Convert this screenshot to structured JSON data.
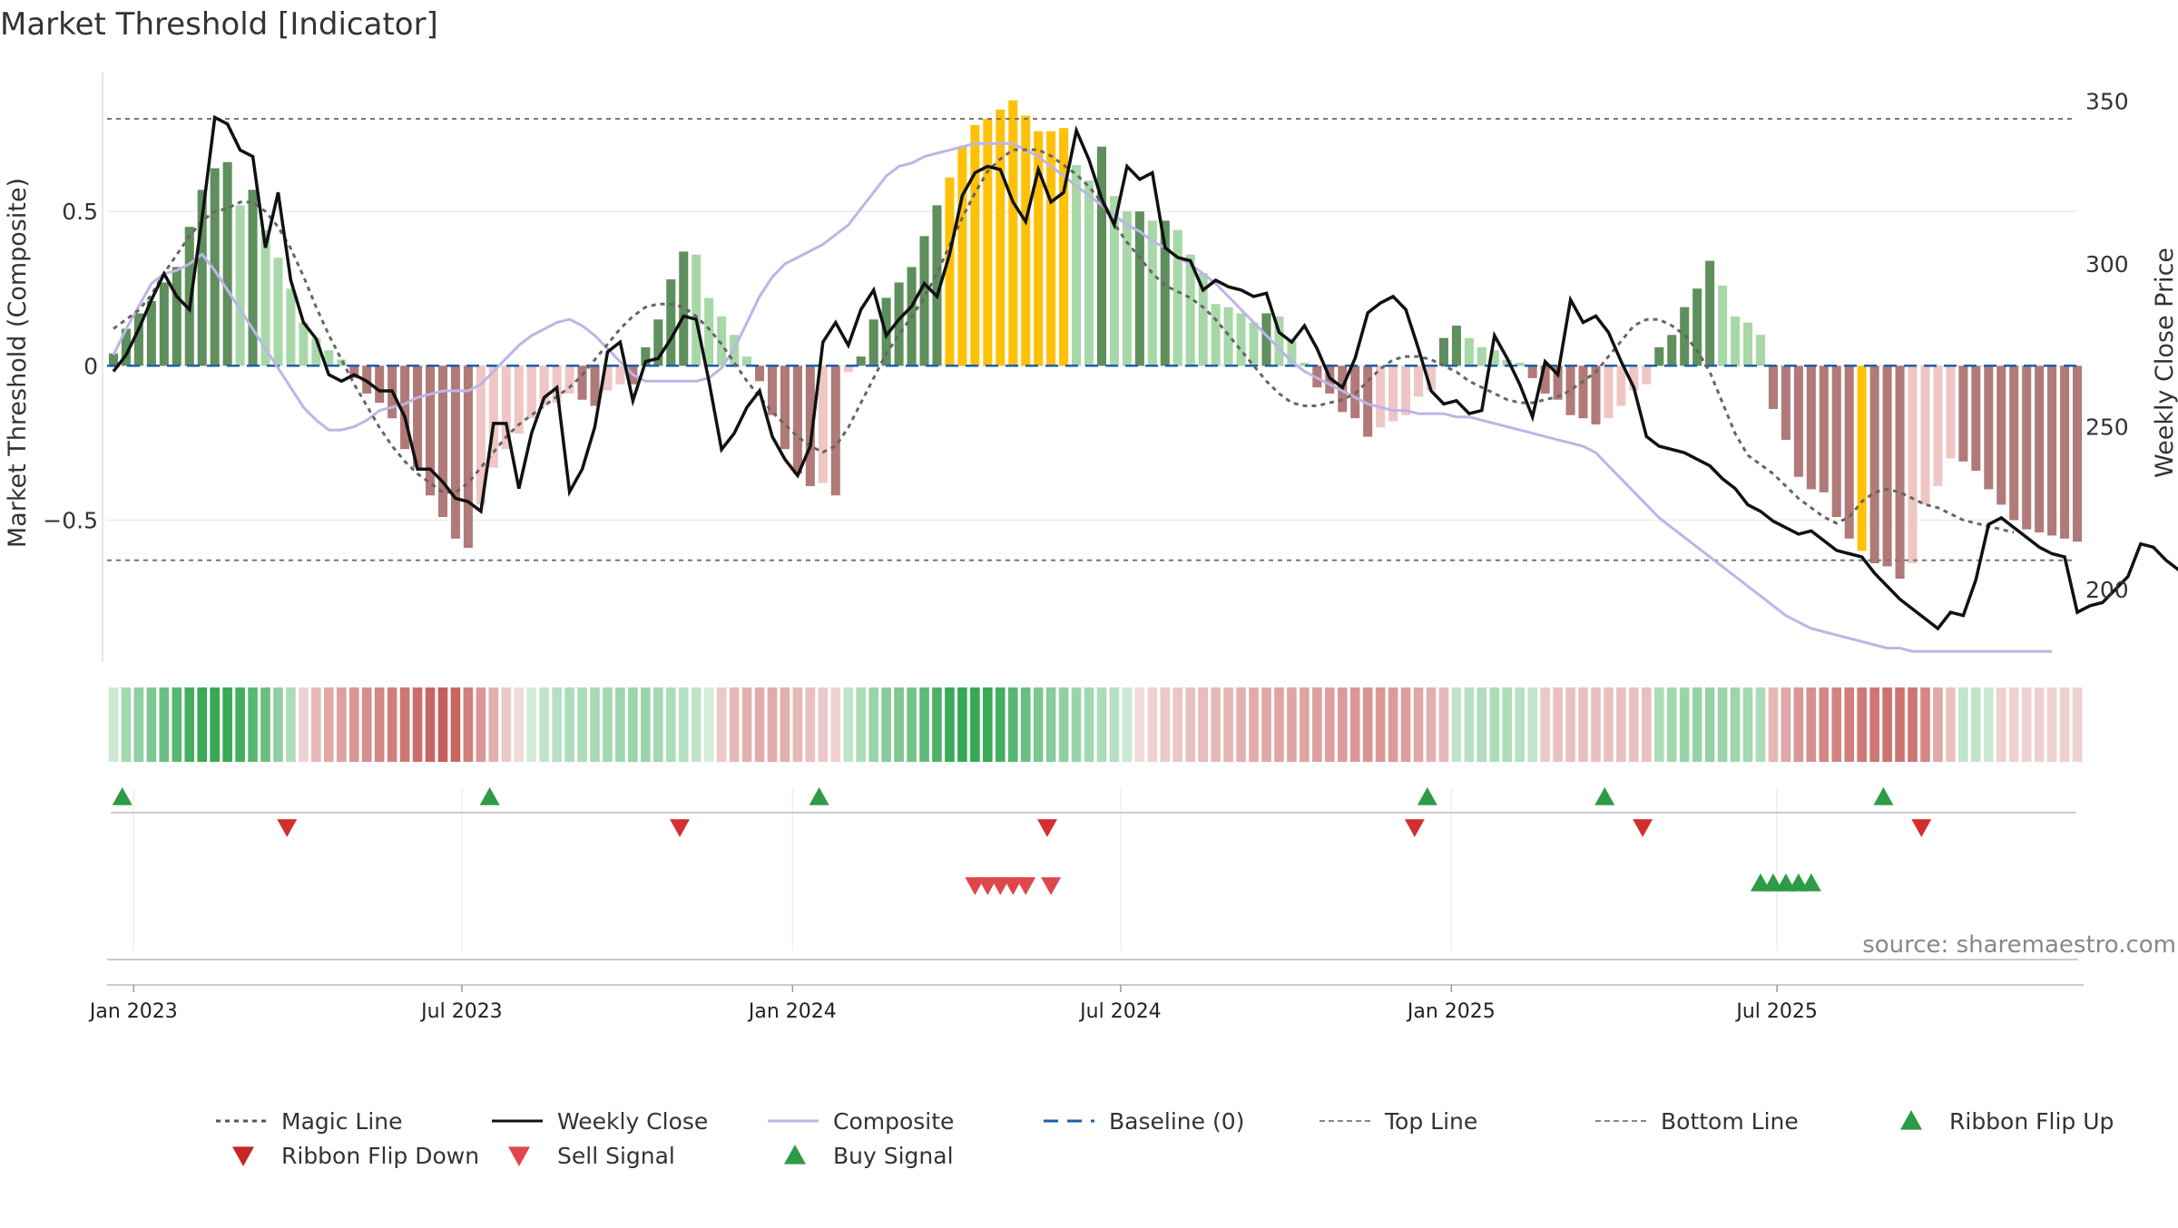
{
  "chart_data": {
    "type": "bar",
    "title": "Market Threshold [Indicator]",
    "ylabel": "Market Threshold (Composite)",
    "y2label": "Weekly Close Price",
    "source": "source: sharemaestro.com",
    "ylim": [
      -0.96,
      0.95
    ],
    "y2lim": [
      177.7,
      358.8
    ],
    "yticks": [
      {
        "v": 0.5,
        "label": "0.5"
      },
      {
        "v": 0,
        "label": "0"
      },
      {
        "v": -0.5,
        "label": "−0.5"
      }
    ],
    "y2ticks": [
      {
        "v": 350,
        "label": "350"
      },
      {
        "v": 300,
        "label": "300"
      },
      {
        "v": 250,
        "label": "250"
      },
      {
        "v": 200,
        "label": "200"
      }
    ],
    "xticks": [
      {
        "week": 2.1,
        "label": "Jan 2023"
      },
      {
        "week": 28.0,
        "label": "Jul 2023"
      },
      {
        "week": 54.1,
        "label": "Jan 2024"
      },
      {
        "week": 80.0,
        "label": "Jul 2024"
      },
      {
        "week": 106.1,
        "label": "Jan 2025"
      },
      {
        "week": 131.8,
        "label": "Jul 2025"
      }
    ],
    "top_line": 0.8,
    "bottom_line": -0.63,
    "composite": [
      0.02,
      0.08,
      0.14,
      0.2,
      0.26,
      0.32,
      0.46,
      0.57,
      0.64,
      0.66,
      0.5,
      0.56,
      0.44,
      0.34,
      0.25,
      0.14,
      0.09,
      0.05,
      0.01,
      -0.03,
      -0.08,
      -0.12,
      -0.17,
      -0.26,
      -0.33,
      -0.41,
      -0.48,
      -0.55,
      -0.58,
      -0.44,
      -0.33,
      -0.27,
      -0.22,
      -0.17,
      -0.13,
      -0.12,
      -0.09,
      -0.11,
      -0.13,
      -0.08,
      -0.06,
      -0.05,
      0.05,
      0.15,
      0.27,
      0.37,
      0.36,
      0.22,
      0.16,
      0.1,
      0.03,
      -0.05,
      -0.16,
      -0.27,
      -0.35,
      -0.39,
      -0.38,
      -0.41,
      -0.02,
      0.03,
      0.15,
      0.22,
      0.27,
      0.32,
      0.42,
      0.52,
      0.61,
      0.71,
      0.78,
      0.8,
      0.83,
      0.86,
      0.81,
      0.76,
      0.76,
      0.76,
      0.65,
      0.6,
      0.71,
      0.55,
      0.5,
      0.5,
      0.47,
      0.47,
      0.44,
      0.36,
      0.3,
      0.2,
      0.19,
      0.17,
      0.14,
      0.17,
      0.16,
      0.08,
      0.01,
      -0.07,
      -0.09,
      -0.15,
      -0.17,
      -0.23,
      -0.2,
      -0.18,
      -0.16,
      -0.1,
      -0.08,
      0.09,
      0.13,
      0.09,
      0.06,
      0.05,
      0.02,
      0.01,
      -0.04,
      -0.09,
      -0.11,
      -0.16,
      -0.17,
      -0.19,
      -0.17,
      -0.13,
      -0.08,
      -0.06,
      0.06,
      0.1,
      0.19,
      0.25,
      0.34,
      0.26,
      0.16,
      0.14,
      0.1,
      -0.14,
      -0.24,
      -0.36,
      -0.4,
      -0.41,
      -0.49,
      -0.56,
      -0.6,
      -0.63,
      -0.64,
      -0.68,
      -0.63,
      -0.45,
      -0.39,
      -0.3,
      -0.31,
      -0.34,
      -0.4,
      -0.45,
      -0.5,
      -0.53,
      -0.54,
      -0.55,
      -0.56,
      -0.57
    ],
    "magic_line": [
      0.12,
      0.15,
      0.18,
      0.23,
      0.3,
      0.36,
      0.42,
      0.47,
      0.5,
      0.51,
      0.53,
      0.53,
      0.5,
      0.45,
      0.38,
      0.29,
      0.19,
      0.1,
      0.02,
      -0.06,
      -0.13,
      -0.2,
      -0.26,
      -0.31,
      -0.35,
      -0.38,
      -0.41,
      -0.41,
      -0.38,
      -0.33,
      -0.28,
      -0.23,
      -0.19,
      -0.16,
      -0.13,
      -0.1,
      -0.07,
      -0.03,
      0.02,
      0.07,
      0.12,
      0.16,
      0.19,
      0.2,
      0.2,
      0.19,
      0.16,
      0.12,
      0.07,
      0.01,
      -0.05,
      -0.1,
      -0.15,
      -0.19,
      -0.23,
      -0.26,
      -0.28,
      -0.26,
      -0.2,
      -0.12,
      -0.04,
      0.04,
      0.1,
      0.16,
      0.22,
      0.3,
      0.39,
      0.48,
      0.56,
      0.63,
      0.67,
      0.7,
      0.7,
      0.7,
      0.68,
      0.65,
      0.62,
      0.58,
      0.53,
      0.46,
      0.4,
      0.35,
      0.3,
      0.26,
      0.24,
      0.22,
      0.19,
      0.15,
      0.1,
      0.05,
      0,
      -0.05,
      -0.09,
      -0.12,
      -0.13,
      -0.13,
      -0.12,
      -0.11,
      -0.09,
      -0.05,
      -0.01,
      0.02,
      0.03,
      0.03,
      0.02,
      0,
      -0.02,
      -0.05,
      -0.07,
      -0.09,
      -0.11,
      -0.12,
      -0.12,
      -0.11,
      -0.1,
      -0.08,
      -0.05,
      -0.02,
      0.03,
      0.08,
      0.13,
      0.15,
      0.15,
      0.13,
      0.1,
      0.05,
      -0.02,
      -0.12,
      -0.22,
      -0.29,
      -0.32,
      -0.35,
      -0.39,
      -0.43,
      -0.46,
      -0.49,
      -0.51,
      -0.49,
      -0.44,
      -0.41,
      -0.4,
      -0.41,
      -0.43,
      -0.45,
      -0.46,
      -0.48,
      -0.5,
      -0.51,
      -0.52,
      -0.53,
      -0.54
    ],
    "composite_line": [
      272,
      280,
      287,
      294,
      297,
      298,
      300,
      303,
      298,
      292,
      286,
      280,
      274,
      268,
      262,
      256,
      252,
      249,
      249,
      250,
      252,
      255,
      256,
      257,
      259,
      260,
      261,
      261,
      261,
      263,
      267,
      271,
      275,
      278,
      280,
      282,
      283,
      281,
      278,
      274,
      270,
      266,
      264,
      264,
      264,
      264,
      264,
      265,
      268,
      274,
      282,
      290,
      296,
      300,
      302,
      304,
      306,
      309,
      312,
      317,
      322,
      327,
      330,
      331,
      333,
      334,
      335,
      336,
      337,
      337,
      337,
      337,
      335,
      333,
      330,
      327,
      324,
      321,
      318,
      315,
      312,
      310,
      307,
      305,
      302,
      300,
      297,
      294,
      290,
      286,
      282,
      278,
      274,
      270,
      267,
      265,
      263,
      261,
      259,
      257,
      256,
      255,
      255,
      254,
      254,
      254,
      253,
      253,
      252,
      251,
      250,
      249,
      248,
      247,
      246,
      245,
      244,
      242,
      238,
      234,
      230,
      226,
      222,
      219,
      216,
      213,
      210,
      207,
      204,
      201,
      198,
      195,
      192,
      190,
      188,
      187,
      186,
      185,
      184,
      183,
      182,
      182,
      181,
      181,
      181,
      181,
      181,
      181,
      181,
      181,
      181,
      181,
      181,
      181
    ],
    "close": [
      267,
      272,
      280,
      289,
      297,
      290,
      286,
      314,
      345,
      343,
      335,
      333,
      305,
      322,
      295,
      282,
      277,
      266,
      264,
      266,
      264,
      261,
      261,
      253,
      237,
      237,
      233,
      228,
      227,
      224,
      251,
      251,
      231,
      248,
      259,
      262,
      230,
      237,
      250,
      273,
      276,
      258,
      270,
      271,
      277,
      284,
      283,
      264,
      243,
      248,
      256,
      261,
      247,
      240,
      235,
      244,
      276,
      282,
      275,
      286,
      292,
      278,
      283,
      287,
      294,
      290,
      303,
      321,
      328,
      330,
      329,
      319,
      313,
      329,
      319,
      322,
      341,
      332,
      320,
      312,
      330,
      326,
      328,
      305,
      302,
      301,
      292,
      295,
      293,
      292,
      290,
      291,
      279,
      276,
      281,
      274,
      265,
      262,
      271,
      285,
      288,
      290,
      286,
      274,
      261,
      257,
      258,
      254,
      255,
      278,
      271,
      263,
      253,
      270,
      266,
      289,
      282,
      284,
      279,
      270,
      262,
      247,
      244,
      243,
      242,
      240,
      238,
      234,
      231,
      226,
      224,
      221,
      219,
      217,
      218,
      215,
      212,
      211,
      210,
      205,
      201,
      197,
      194,
      191,
      188,
      193,
      192,
      203,
      220,
      222,
      219,
      216,
      213,
      211,
      210,
      193,
      195,
      196,
      200,
      204,
      214,
      213,
      209,
      206,
      203,
      200
    ],
    "bars": [
      0.04,
      0.12,
      0.17,
      0.21,
      0.27,
      0.32,
      0.45,
      0.57,
      0.64,
      0.66,
      0.52,
      0.57,
      0.44,
      0.35,
      0.25,
      0.14,
      0.09,
      0.05,
      0.02,
      -0.04,
      -0.09,
      -0.12,
      -0.17,
      -0.27,
      -0.33,
      -0.42,
      -0.49,
      -0.56,
      -0.59,
      -0.45,
      -0.33,
      -0.27,
      -0.22,
      -0.17,
      -0.13,
      -0.12,
      -0.09,
      -0.11,
      -0.13,
      -0.08,
      -0.06,
      -0.06,
      0.06,
      0.15,
      0.28,
      0.37,
      0.36,
      0.22,
      0.16,
      0.1,
      0.03,
      -0.05,
      -0.16,
      -0.27,
      -0.35,
      -0.39,
      -0.38,
      -0.42,
      -0.02,
      0.03,
      0.15,
      0.22,
      0.27,
      0.32,
      0.42,
      0.52,
      0.61,
      0.71,
      0.78,
      0.8,
      0.83,
      0.86,
      0.81,
      0.76,
      0.76,
      0.77,
      0.65,
      0.6,
      0.71,
      0.55,
      0.5,
      0.5,
      0.47,
      0.47,
      0.44,
      0.36,
      0.3,
      0.2,
      0.19,
      0.17,
      0.14,
      0.17,
      0.16,
      0.08,
      0.01,
      -0.07,
      -0.09,
      -0.15,
      -0.17,
      -0.23,
      -0.2,
      -0.18,
      -0.16,
      -0.1,
      -0.08,
      0.09,
      0.13,
      0.09,
      0.06,
      0.05,
      0.02,
      0.01,
      -0.04,
      -0.09,
      -0.11,
      -0.16,
      -0.17,
      -0.19,
      -0.17,
      -0.13,
      -0.08,
      -0.06,
      0.06,
      0.1,
      0.19,
      0.25,
      0.34,
      0.26,
      0.16,
      0.14,
      0.1,
      -0.14,
      -0.24,
      -0.36,
      -0.4,
      -0.41,
      -0.49,
      -0.56,
      -0.6,
      -0.64,
      -0.65,
      -0.69,
      -0.64,
      -0.45,
      -0.39,
      -0.3,
      -0.31,
      -0.34,
      -0.4,
      -0.45,
      -0.5,
      -0.53,
      -0.54,
      -0.55,
      -0.56,
      -0.57
    ],
    "bar_colors": {
      "strong_up": "#5e8f5c",
      "weak_up": "#a8d8a8",
      "strong_down": "#b07a78",
      "weak_down": "#eec7c5",
      "extreme": "#ffc107"
    },
    "ribbon_values": [
      0.15,
      0.35,
      0.45,
      0.55,
      0.65,
      0.75,
      0.85,
      0.9,
      0.92,
      0.9,
      0.85,
      0.75,
      0.65,
      0.45,
      0.3,
      -0.15,
      -0.3,
      -0.4,
      -0.45,
      -0.5,
      -0.55,
      -0.6,
      -0.65,
      -0.7,
      -0.75,
      -0.8,
      -0.85,
      -0.8,
      -0.65,
      -0.5,
      -0.35,
      -0.2,
      -0.1,
      0.1,
      0.2,
      0.25,
      0.3,
      0.3,
      0.32,
      0.35,
      0.38,
      0.4,
      0.4,
      0.35,
      0.3,
      0.25,
      0.2,
      0.1,
      -0.2,
      -0.3,
      -0.35,
      -0.38,
      -0.38,
      -0.35,
      -0.3,
      -0.25,
      -0.2,
      -0.15,
      0.2,
      0.3,
      0.4,
      0.5,
      0.55,
      0.6,
      0.7,
      0.8,
      0.9,
      0.92,
      0.92,
      0.9,
      0.85,
      0.75,
      0.65,
      0.55,
      0.5,
      0.45,
      0.4,
      0.35,
      0.3,
      0.25,
      0.15,
      -0.1,
      -0.15,
      -0.2,
      -0.22,
      -0.25,
      -0.28,
      -0.3,
      -0.32,
      -0.35,
      -0.38,
      -0.4,
      -0.42,
      -0.42,
      -0.42,
      -0.45,
      -0.45,
      -0.48,
      -0.5,
      -0.52,
      -0.5,
      -0.48,
      -0.45,
      -0.4,
      -0.35,
      -0.3,
      0.2,
      0.25,
      0.28,
      0.3,
      0.3,
      0.25,
      0.2,
      -0.2,
      -0.25,
      -0.25,
      -0.25,
      -0.25,
      -0.25,
      -0.25,
      -0.25,
      -0.25,
      0.3,
      0.35,
      0.4,
      0.42,
      0.42,
      0.4,
      0.38,
      0.35,
      0.3,
      -0.3,
      -0.4,
      -0.5,
      -0.55,
      -0.6,
      -0.62,
      -0.65,
      -0.68,
      -0.7,
      -0.72,
      -0.72,
      -0.7,
      -0.6,
      -0.4,
      -0.25,
      0.2,
      0.2,
      0.15,
      -0.15,
      -0.15,
      -0.15,
      -0.15,
      -0.15,
      -0.15,
      -0.15
    ],
    "ribbon_colors": {
      "up": "#34a853",
      "down": "#c0514d"
    },
    "ribbon_flip_up": [
      1,
      30,
      56,
      104,
      118,
      140
    ],
    "ribbon_flip_down": [
      14,
      45,
      74,
      103,
      121,
      143
    ],
    "buy_signals": [
      130,
      131,
      132,
      133,
      134
    ],
    "sell_signals": [
      68,
      69,
      70,
      71,
      72,
      74
    ],
    "marker_colors": {
      "up": "#2e9b45",
      "down": "#d32f2f",
      "sell": "#e0474c",
      "buy": "#2e9b45"
    },
    "line_colors": {
      "magic": "#666666",
      "close": "#111111",
      "composite": "#bdb5e6",
      "baseline": "#1f5fa8",
      "threshold": "#777777"
    },
    "legend": [
      {
        "label": "Magic Line",
        "kind": "dotted",
        "color": "#555555"
      },
      {
        "label": "Weekly Close",
        "kind": "solid",
        "color": "#111111"
      },
      {
        "label": "Composite",
        "kind": "solid",
        "color": "#bdb5e6"
      },
      {
        "label": "Baseline (0)",
        "kind": "dashed",
        "color": "#1f5fa8"
      },
      {
        "label": "Top Line",
        "kind": "thin-dashed",
        "color": "#888888"
      },
      {
        "label": "Bottom Line",
        "kind": "thin-dashed",
        "color": "#888888"
      },
      {
        "label": "Ribbon Flip Up",
        "kind": "tri-up",
        "color": "#2e9b45"
      },
      {
        "label": "Ribbon Flip Down",
        "kind": "tri-down",
        "color": "#c62828"
      },
      {
        "label": "Sell Signal",
        "kind": "tri-down",
        "color": "#e0474c"
      },
      {
        "label": "Buy Signal",
        "kind": "tri-up",
        "color": "#2e9b45"
      }
    ]
  }
}
